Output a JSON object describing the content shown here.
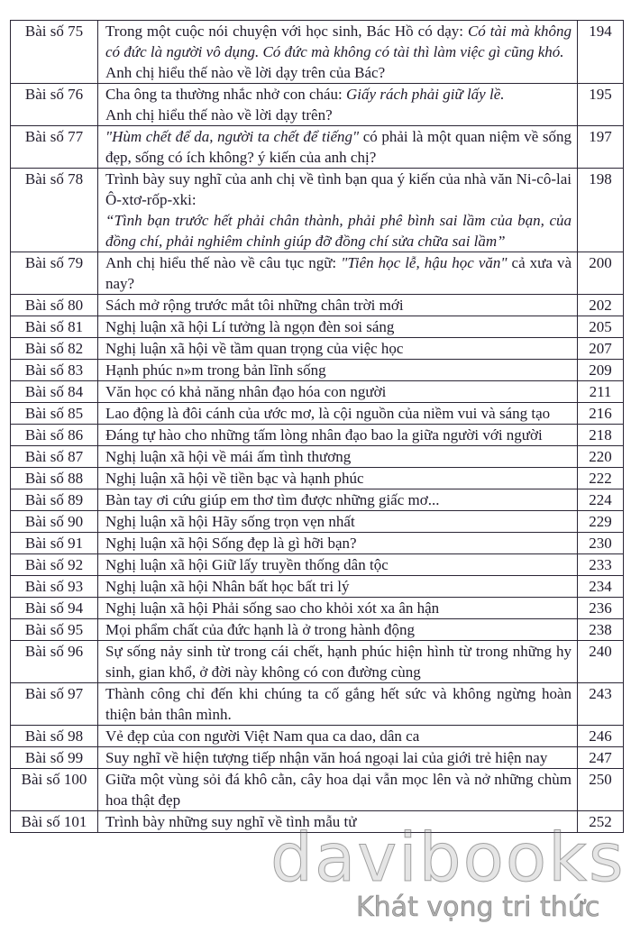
{
  "rows": [
    {
      "num": "Bài số 75",
      "page": "194",
      "lines": [
        [
          {
            "t": "Trong một cuộc nói chuyện với học sinh, Bác Hồ có dạy: "
          },
          {
            "t": "Có tài mà không có đức là người vô dụng. Có đức mà không có tài thì làm việc gì cũng khó.",
            "i": true
          }
        ],
        [
          {
            "t": "Anh chị hiểu thế nào về lời dạy trên của Bác?"
          }
        ]
      ]
    },
    {
      "num": "Bài số 76",
      "page": "195",
      "lines": [
        [
          {
            "t": "Cha ông ta thường nhắc nhở con cháu: "
          },
          {
            "t": "Giấy rách phải giữ lấy lề.",
            "i": true
          }
        ],
        [
          {
            "t": "Anh chị hiểu thế nào về lời dạy trên?"
          }
        ]
      ]
    },
    {
      "num": "Bài số 77",
      "page": "197",
      "lines": [
        [
          {
            "t": "\"Hùm chết để da, người ta chết để tiếng\"",
            "i": true
          },
          {
            "t": "   có phải là một quan niệm về sống đẹp, sống có ích không? ý kiến của anh chị?"
          }
        ]
      ]
    },
    {
      "num": "Bài số 78",
      "page": "198",
      "lines": [
        [
          {
            "t": "Trình bày suy nghĩ của anh chị về tình bạn qua ý kiến của nhà văn Ni-cô-lai Ô-xtơ-rốp-xki:"
          }
        ],
        [
          {
            "t": "“Tình bạn trước hết phải chân thành, phải phê bình sai lầm của bạn, của đồng chí, phải nghiêm chỉnh giúp đỡ đồng chí sửa chữa sai lầm”",
            "i": true
          }
        ]
      ]
    },
    {
      "num": "Bài số 79",
      "page": "200",
      "lines": [
        [
          {
            "t": "Anh chị hiểu thế nào về câu tục ngữ: "
          },
          {
            "t": "\"Tiên học lễ, hậu học văn\"",
            "i": true
          },
          {
            "t": " cả xưa và nay?"
          }
        ]
      ]
    },
    {
      "num": "Bài số 80",
      "page": "202",
      "lines": [
        [
          {
            "t": "Sách mở rộng trước mắt tôi những chân trời mới"
          }
        ]
      ]
    },
    {
      "num": "Bài số 81",
      "page": "205",
      "lines": [
        [
          {
            "t": "Nghị luận xã hội Lí tưởng là ngọn đèn soi sáng"
          }
        ]
      ]
    },
    {
      "num": "Bài số 82",
      "page": "207",
      "lines": [
        [
          {
            "t": "Nghị luận xã hội về tầm quan trọng của việc học"
          }
        ]
      ]
    },
    {
      "num": "Bài số 83",
      "page": "209",
      "lines": [
        [
          {
            "t": "Hạnh phúc n»m trong bản lĩnh sống"
          }
        ]
      ]
    },
    {
      "num": "Bài số 84",
      "page": "211",
      "lines": [
        [
          {
            "t": "Văn học có khả năng nhân đạo hóa con người"
          }
        ]
      ]
    },
    {
      "num": "Bài số 85",
      "page": "216",
      "lines": [
        [
          {
            "t": "Lao động là đôi cánh của ước mơ, là cội nguồn của niềm vui và sáng tạo"
          }
        ]
      ]
    },
    {
      "num": "Bài số 86",
      "page": "218",
      "lines": [
        [
          {
            "t": "Đáng tự hào cho những tấm lòng nhân đạo bao la giữa người với người"
          }
        ]
      ]
    },
    {
      "num": "Bài số 87",
      "page": "220",
      "lines": [
        [
          {
            "t": "Nghị luận xã hội về mái ấm tình thương"
          }
        ]
      ]
    },
    {
      "num": "Bài số 88",
      "page": "222",
      "lines": [
        [
          {
            "t": "Nghị luận xã hội về tiền bạc và hạnh phúc"
          }
        ]
      ]
    },
    {
      "num": "Bài số 89",
      "page": "224",
      "lines": [
        [
          {
            "t": "Bàn tay ơi cứu giúp em thơ tìm được những giấc mơ..."
          }
        ]
      ]
    },
    {
      "num": "Bài số 90",
      "page": "229",
      "lines": [
        [
          {
            "t": "Nghị luận xã hội Hãy sống trọn vẹn nhất"
          }
        ]
      ]
    },
    {
      "num": "Bài số 91",
      "page": "230",
      "lines": [
        [
          {
            "t": "Nghị luận xã hội Sống đẹp là gì hỡi bạn?"
          }
        ]
      ]
    },
    {
      "num": "Bài số 92",
      "page": "233",
      "lines": [
        [
          {
            "t": "Nghị luận xã hội Giữ lấy truyền thống dân tộc"
          }
        ]
      ]
    },
    {
      "num": "Bài số 93",
      "page": "234",
      "lines": [
        [
          {
            "t": "Nghị luận xã hội Nhân bất học bất tri lý"
          }
        ]
      ]
    },
    {
      "num": "Bài số 94",
      "page": "236",
      "lines": [
        [
          {
            "t": "Nghị luận xã hội Phải sống sao cho khỏi xót xa ân hận"
          }
        ]
      ]
    },
    {
      "num": "Bài số 95",
      "page": "238",
      "lines": [
        [
          {
            "t": "Mọi phẩm chất của đức hạnh là ở trong hành động"
          }
        ]
      ]
    },
    {
      "num": "Bài số 96",
      "page": "240",
      "lines": [
        [
          {
            "t": "Sự sống nảy sinh từ trong cái chết, hạnh phúc hiện hình từ trong những hy sinh, gian khổ, ở đời này không có con đường cùng"
          }
        ]
      ]
    },
    {
      "num": "Bài số 97",
      "page": "243",
      "lines": [
        [
          {
            "t": "Thành công chỉ đến khi chúng ta cố gắng hết sức và không ngừng hoàn thiện bản thân mình."
          }
        ]
      ]
    },
    {
      "num": "Bài số 98",
      "page": "246",
      "lines": [
        [
          {
            "t": "Vẻ đẹp của con người Việt Nam qua ca dao, dân ca"
          }
        ]
      ]
    },
    {
      "num": "Bài số 99",
      "page": "247",
      "lines": [
        [
          {
            "t": "Suy nghĩ về hiện tượng tiếp nhận văn hoá ngoại lai của giới trẻ hiện nay"
          }
        ]
      ]
    },
    {
      "num": "Bài số 100",
      "page": "250",
      "lines": [
        [
          {
            "t": "Giữa một vùng sỏi đá khô cằn, cây hoa dại vẫn mọc lên và nở những chùm hoa thật đẹp"
          }
        ]
      ]
    },
    {
      "num": "Bài số 101",
      "page": "252",
      "lines": [
        [
          {
            "t": "Trình bày những suy nghĩ về tình mẫu tử"
          }
        ]
      ]
    }
  ],
  "watermark": {
    "brand": "davibooks",
    "slogan": "Khát vọng tri thức"
  }
}
